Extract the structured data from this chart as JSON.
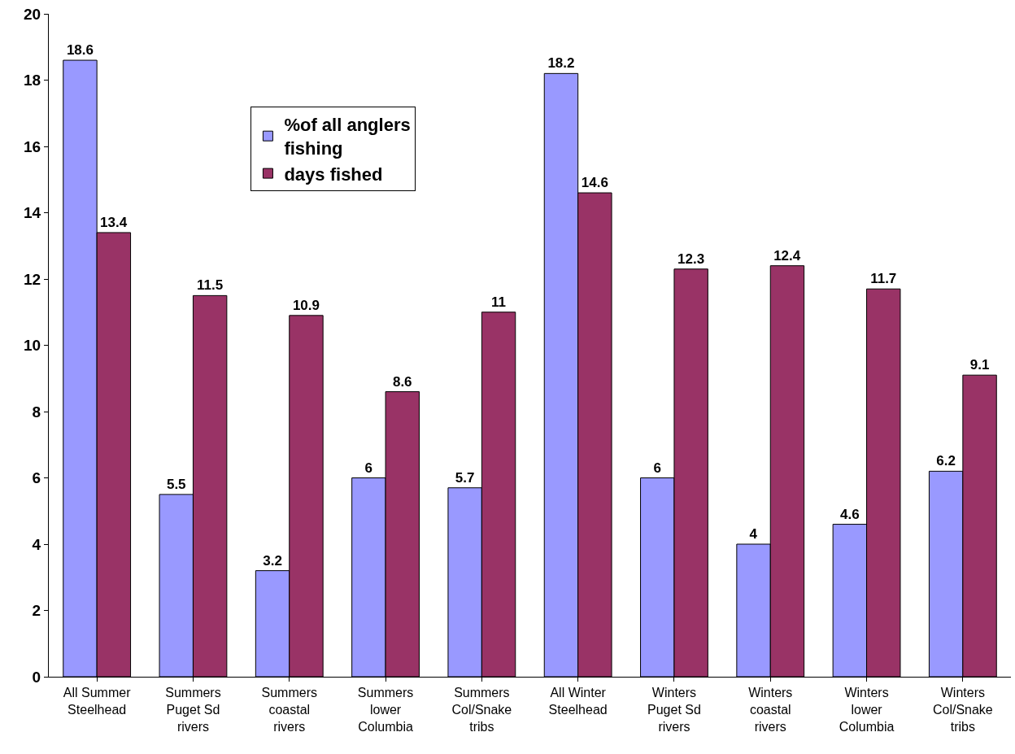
{
  "chart_data": {
    "type": "bar",
    "categories": [
      "All Summer\nSteelhead",
      "Summers\nPuget Sd\nrivers",
      "Summers\ncoastal\nrivers",
      "Summers\nlower\nColumbia",
      "Summers\nCol/Snake\ntribs",
      "All Winter\nSteelhead",
      "Winters\nPuget Sd\nrivers",
      "Winters\ncoastal\nrivers",
      "Winters\nlower\nColumbia",
      "Winters\nCol/Snake\ntribs"
    ],
    "series": [
      {
        "name": "%of all anglers\nfishing",
        "color": "#9999ff",
        "values": [
          18.6,
          5.5,
          3.2,
          6,
          5.7,
          18.2,
          6,
          4,
          4.6,
          6.2
        ]
      },
      {
        "name": "days fished",
        "color": "#993366",
        "values": [
          13.4,
          11.5,
          10.9,
          8.6,
          11,
          14.6,
          12.3,
          12.4,
          11.7,
          9.1
        ]
      }
    ],
    "ylim": [
      0,
      20
    ],
    "yticks": [
      0,
      2,
      4,
      6,
      8,
      10,
      12,
      14,
      16,
      18,
      20
    ],
    "data_labels": true,
    "legend": "top"
  }
}
